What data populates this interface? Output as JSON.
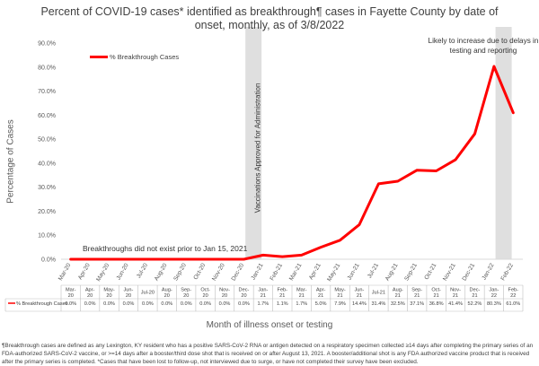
{
  "chart_data": {
    "type": "line",
    "title": "Percent of COVID-19 cases* identified as breakthrough¶ cases in Fayette County by date of onset, monthly, as of 3/8/2022",
    "xlabel": "Month of illness onset or testing",
    "ylabel": "Percentage of Cases",
    "ylim": [
      0,
      90
    ],
    "yticks": [
      "0.0%",
      "10.0%",
      "20.0%",
      "30.0%",
      "40.0%",
      "50.0%",
      "60.0%",
      "70.0%",
      "80.0%",
      "90.0%"
    ],
    "categories": [
      "Mar-20",
      "Apr-20",
      "May-20",
      "Jun-20",
      "Jul-20",
      "Aug-20",
      "Sep-20",
      "Oct-20",
      "Nov-20",
      "Dec-20",
      "Jan-21",
      "Feb-21",
      "Mar-21",
      "Apr-21",
      "May-21",
      "Jun-21",
      "Jul-21",
      "Aug-21",
      "Sep-21",
      "Oct-21",
      "Nov-21",
      "Dec-21",
      "Jan-22",
      "Feb-22"
    ],
    "table_categories": [
      "Mar-\n20",
      "Apr-\n20",
      "May-\n20",
      "Jun-\n20",
      "Jul-20",
      "Aug-\n20",
      "Sep-\n20",
      "Oct-\n20",
      "Nov-\n20",
      "Dec-\n20",
      "Jan-\n21",
      "Feb-\n21",
      "Mar-\n21",
      "Apr-\n21",
      "May-\n21",
      "Jun-\n21",
      "Jul-21",
      "Aug-\n21",
      "Sep-\n21",
      "Oct-\n21",
      "Nov-\n21",
      "Dec-\n21",
      "Jan-\n22",
      "Feb-\n22"
    ],
    "series": [
      {
        "name": "% Breakthrough Cases",
        "color": "#ff0000",
        "values": [
          0,
          0,
          0,
          0,
          0,
          0,
          0,
          0,
          0,
          0,
          1.7,
          1.1,
          1.7,
          5.0,
          7.9,
          14.4,
          31.4,
          32.5,
          37.1,
          36.8,
          41.4,
          52.2,
          80.3,
          61.0
        ],
        "labels": [
          "0.0%",
          "0.0%",
          "0.0%",
          "0.0%",
          "0.0%",
          "0.0%",
          "0.0%",
          "0.0%",
          "0.0%",
          "0.0%",
          "1.7%",
          "1.1%",
          "1.7%",
          "5.0%",
          "7.9%",
          "14.4%",
          "31.4%",
          "32.5%",
          "37.1%",
          "36.8%",
          "41.4%",
          "52.2%",
          "80.3%",
          "61.0%"
        ]
      }
    ],
    "shaded_bands": [
      {
        "start": "Dec-20",
        "end": "Jan-21",
        "color": "#d9d9d9"
      },
      {
        "start": "Jan-22",
        "end": "Feb-22",
        "color": "#d9d9d9"
      }
    ],
    "legend_position": "top-left",
    "grid": false,
    "annotations": {
      "vaccination": "Vaccinations Approved for Administration",
      "prior": "Breakthroughs did not exist prior to Jan 15, 2021",
      "likely": "Likely to increase due to delays in testing and reporting"
    }
  },
  "footnote": {
    "line1": "¶Breakthrough cases are defined as any Lexington, KY resident who has a positive SARS-CoV-2 RNA or antigen detected on a respiratory specimen collected ≥14 days after completing the primary series of an",
    "line2": "FDA-authorized SARS-CoV-2 vaccine, or >=14 days after a booster/third dose shot that is received on or after August 13, 2021.  A booster/additional shot is any FDA authorized vaccine product that is received",
    "line3": "after the primary series is completed. *Cases that have been lost to follow-up, not interviewed due to surge, or have not completed their survey have been excluded."
  }
}
